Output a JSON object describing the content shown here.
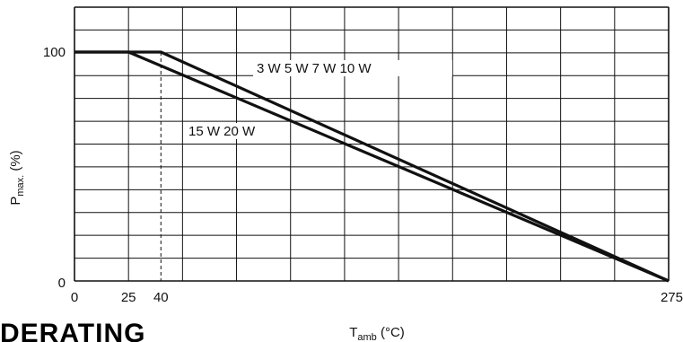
{
  "chart_data": {
    "type": "line",
    "title": "",
    "xlabel": "T",
    "xlabel_sub": "amb",
    "xlabel_unit": " (°C)",
    "ylabel": "P",
    "ylabel_sub": "max.",
    "ylabel_unit": " (%)",
    "xlim": [
      0,
      275
    ],
    "ylim": [
      0,
      100
    ],
    "x_ticks": [
      "0",
      "25",
      "40",
      "275"
    ],
    "y_ticks": [
      "0",
      "100"
    ],
    "grid": true,
    "reference_line": {
      "x": 40,
      "style": "dashed"
    },
    "series": [
      {
        "name": "3 W   5 W   7 W   10 W",
        "x": [
          0,
          40,
          275
        ],
        "y": [
          100,
          100,
          0
        ]
      },
      {
        "name": "15 W   20 W",
        "x": [
          0,
          25,
          275
        ],
        "y": [
          100,
          100,
          0
        ]
      }
    ]
  },
  "footer_heading": "DERATING"
}
